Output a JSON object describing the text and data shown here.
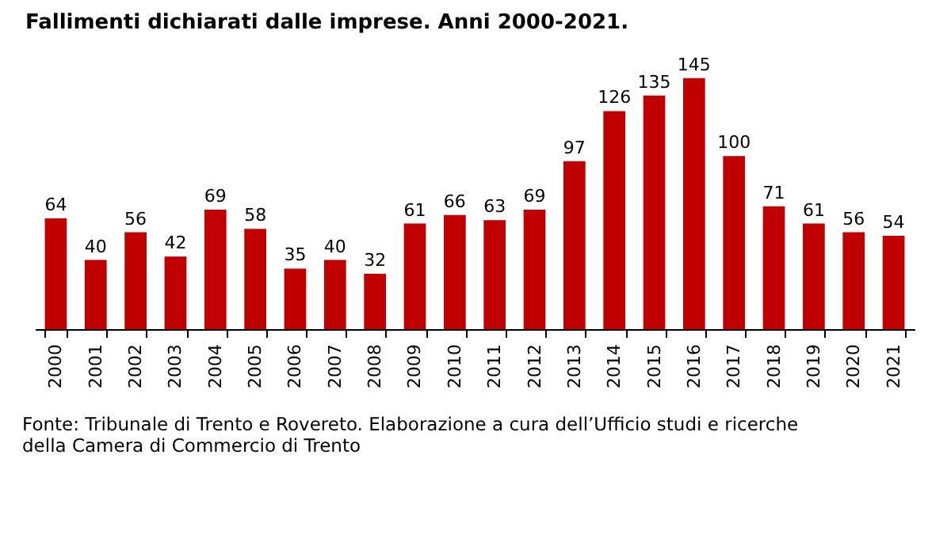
{
  "chart_data": {
    "type": "bar",
    "title": "Fallimenti dichiarati dalle imprese. Anni 2000-2021.",
    "categories": [
      "2000",
      "2001",
      "2002",
      "2003",
      "2004",
      "2005",
      "2006",
      "2007",
      "2008",
      "2009",
      "2010",
      "2011",
      "2012",
      "2013",
      "2014",
      "2015",
      "2016",
      "2017",
      "2018",
      "2019",
      "2020",
      "2021"
    ],
    "values": [
      64,
      40,
      56,
      42,
      69,
      58,
      35,
      40,
      32,
      61,
      66,
      63,
      69,
      97,
      126,
      135,
      145,
      100,
      71,
      61,
      56,
      54
    ],
    "color": "#c00000",
    "data_labels": true,
    "tick_labels": "x",
    "grid": false,
    "annotations": [
      "Fonte: Tribunale di Trento e Rovereto. Elaborazione a cura dell’Ufficio studi e ricerche\ndella Camera di Commercio di Trento"
    ]
  }
}
